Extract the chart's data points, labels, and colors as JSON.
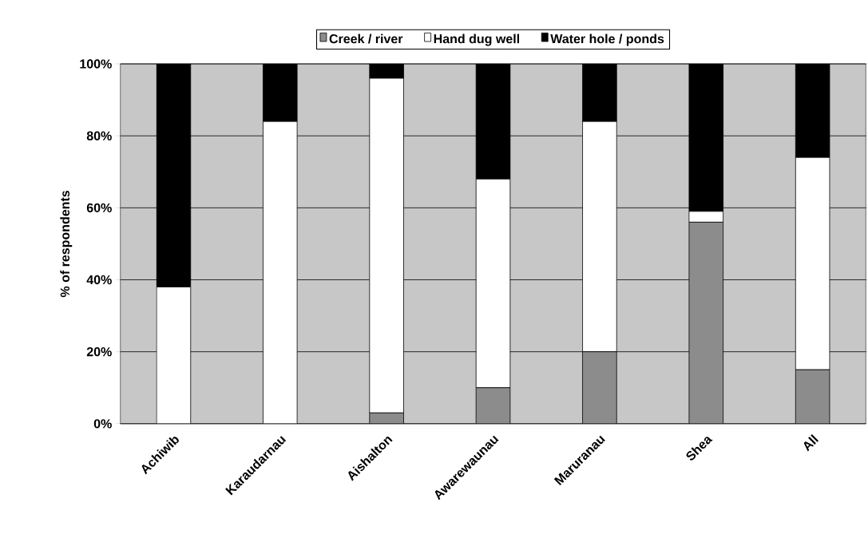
{
  "chart_data": {
    "type": "bar",
    "stacked": true,
    "ylabel": "% of respondents",
    "categories": [
      "Achiwib",
      "Karaudarnau",
      "Aishalton",
      "Awarewaunau",
      "Maruranau",
      "Shea",
      "All"
    ],
    "series": [
      {
        "name": "Creek / river",
        "color": "#8c8c8c",
        "values": [
          0,
          0,
          3,
          10,
          20,
          56,
          15
        ]
      },
      {
        "name": "Hand dug well",
        "color": "#ffffff",
        "values": [
          38,
          84,
          93,
          58,
          64,
          3,
          59
        ]
      },
      {
        "name": "Water hole / ponds",
        "color": "#000000",
        "values": [
          62,
          16,
          4,
          32,
          16,
          41,
          26
        ]
      }
    ],
    "ylim": [
      0,
      100
    ],
    "yticks": [
      {
        "value": 0,
        "label": "0%"
      },
      {
        "value": 20,
        "label": "20%"
      },
      {
        "value": 40,
        "label": "40%"
      },
      {
        "value": 60,
        "label": "60%"
      },
      {
        "value": 80,
        "label": "80%"
      },
      {
        "value": 100,
        "label": "100%"
      }
    ],
    "grid": "y",
    "legend": "top"
  }
}
